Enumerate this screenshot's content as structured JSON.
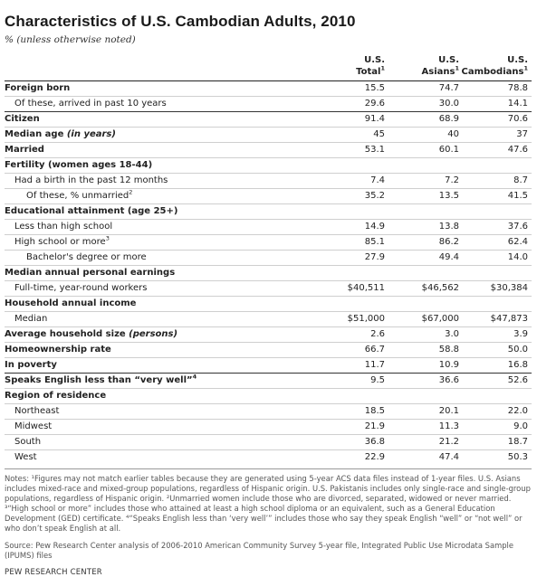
{
  "title": "Characteristics of U.S. Cambodian Adults, 2010",
  "subtitle": "% (unless otherwise noted)",
  "columns": [
    {
      "line1": "U.S.",
      "line2": "Total",
      "sup": "1"
    },
    {
      "line1": "U.S.",
      "line2": "Asians",
      "sup": "1"
    },
    {
      "line1": "U.S.",
      "line2": "Cambodians",
      "sup": "1"
    }
  ],
  "rows": [
    {
      "label": "Foreign born",
      "style": "section",
      "values": [
        "15.5",
        "74.7",
        "78.8"
      ]
    },
    {
      "label": "Of these, arrived in past 10 years",
      "style": "l1",
      "values": [
        "29.6",
        "30.0",
        "14.1"
      ]
    },
    {
      "label": "Citizen",
      "style": "section",
      "values": [
        "91.4",
        "68.9",
        "70.6"
      ]
    },
    {
      "label": "Median age",
      "label_note": "(in years)",
      "style": "section",
      "values": [
        "45",
        "40",
        "37"
      ]
    },
    {
      "label": "Married",
      "style": "section",
      "values": [
        "53.1",
        "60.1",
        "47.6"
      ]
    },
    {
      "label": "Fertility (women ages 18-44)",
      "style": "section",
      "values": [
        "",
        "",
        ""
      ]
    },
    {
      "label": "Had a birth in the past 12 months",
      "style": "l1",
      "values": [
        "7.4",
        "7.2",
        "8.7"
      ]
    },
    {
      "label": "Of these, % unmarried",
      "sup": "2",
      "style": "l2",
      "values": [
        "35.2",
        "13.5",
        "41.5"
      ]
    },
    {
      "label": "Educational attainment (age 25+)",
      "style": "section",
      "values": [
        "",
        "",
        ""
      ]
    },
    {
      "label": "Less than high school",
      "style": "l1",
      "values": [
        "14.9",
        "13.8",
        "37.6"
      ]
    },
    {
      "label": "High school or more",
      "sup": "3",
      "style": "l1",
      "values": [
        "85.1",
        "86.2",
        "62.4"
      ]
    },
    {
      "label": "Bachelor's degree or more",
      "style": "l2",
      "values": [
        "27.9",
        "49.4",
        "14.0"
      ]
    },
    {
      "label": "Median annual personal earnings",
      "style": "section",
      "values": [
        "",
        "",
        ""
      ]
    },
    {
      "label": "Full-time, year-round workers",
      "style": "l1",
      "values": [
        "$40,511",
        "$46,562",
        "$30,384"
      ]
    },
    {
      "label": "Household annual income",
      "style": "section",
      "values": [
        "",
        "",
        ""
      ]
    },
    {
      "label": "Median",
      "style": "l1",
      "values": [
        "$51,000",
        "$67,000",
        "$47,873"
      ]
    },
    {
      "label": "Average household size",
      "label_note": "(persons)",
      "style": "section",
      "values": [
        "2.6",
        "3.0",
        "3.9"
      ]
    },
    {
      "label": "Homeownership rate",
      "style": "section",
      "values": [
        "66.7",
        "58.8",
        "50.0"
      ]
    },
    {
      "label": "In poverty",
      "style": "section",
      "values": [
        "11.7",
        "10.9",
        "16.8"
      ]
    },
    {
      "label": "Speaks English less than “very well”",
      "sup": "4",
      "style": "section",
      "values": [
        "9.5",
        "36.6",
        "52.6"
      ]
    },
    {
      "label": "Region of residence",
      "style": "section",
      "values": [
        "",
        "",
        ""
      ]
    },
    {
      "label": "Northeast",
      "style": "l1",
      "values": [
        "18.5",
        "20.1",
        "22.0"
      ]
    },
    {
      "label": "Midwest",
      "style": "l1",
      "values": [
        "21.9",
        "11.3",
        "9.0"
      ]
    },
    {
      "label": "South",
      "style": "l1",
      "values": [
        "36.8",
        "21.2",
        "18.7"
      ]
    },
    {
      "label": "West",
      "style": "l1",
      "values": [
        "22.9",
        "47.4",
        "50.3"
      ]
    }
  ],
  "separators": {
    "light": [
      1,
      3,
      4,
      5,
      6,
      7,
      8,
      9,
      10,
      11,
      12,
      13,
      14,
      15,
      16,
      17,
      18,
      20,
      21,
      22,
      23,
      24
    ],
    "dark": [
      2,
      19
    ]
  },
  "notes": "Notes: ¹Figures may not match earlier tables because they are generated using 5-year ACS data files instead of 1-year files. U.S. Asians includes mixed-race and mixed-group populations, regardless of Hispanic origin. U.S. Pakistanis includes only single-race and single-group populations, regardless of Hispanic origin. ²Unmarried women include those who are divorced, separated, widowed or never married. ³“High school or more” includes those who attained at least a high school diploma or an equivalent, such as a General Education Development (GED) certificate. ⁴“Speaks English less than ‘very well’” includes those who say they speak English “well” or “not well” or who don’t speak English at all.",
  "source": "Source: Pew Research Center analysis of 2006-2010 American Community Survey 5-year file, Integrated Public Use Microdata Sample (IPUMS) files",
  "credit": "PEW RESEARCH CENTER"
}
